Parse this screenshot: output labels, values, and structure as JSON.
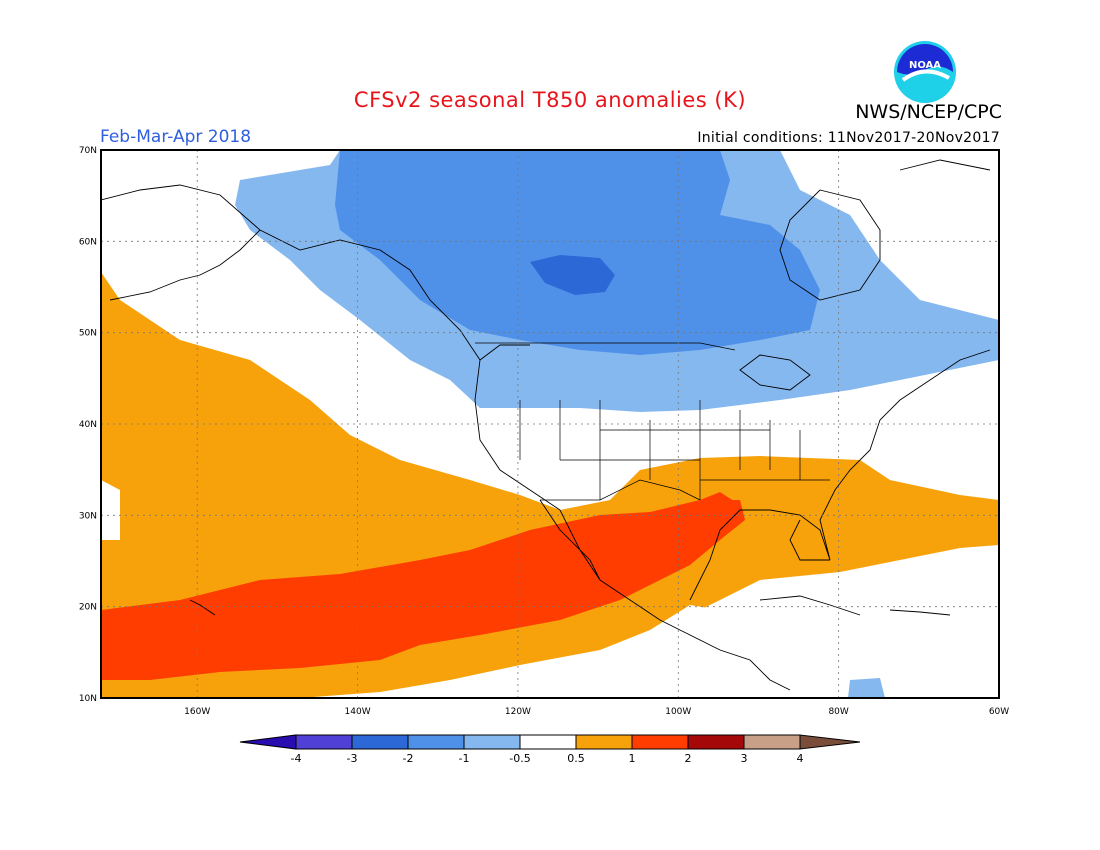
{
  "title": "CFSv2 seasonal T850 anomalies (K)",
  "organization": "NWS/NCEP/CPC",
  "logo_text": "NOAA",
  "period": "Feb-Mar-Apr 2018",
  "initial_conditions": "Initial conditions: 11Nov2017-20Nov2017",
  "map": {
    "lat_labels": [
      "10N",
      "20N",
      "30N",
      "40N",
      "50N",
      "60N",
      "70N"
    ],
    "lon_labels": [
      "160W",
      "140W",
      "120W",
      "100W",
      "80W",
      "60W"
    ],
    "lat_range": [
      10,
      70
    ],
    "lon_range": [
      -172,
      -60
    ]
  },
  "colorbar": {
    "ticks": [
      "-4",
      "-3",
      "-2",
      "-1",
      "-0.5",
      "0.5",
      "1",
      "2",
      "3",
      "4"
    ],
    "colors": [
      "#2a0db0",
      "#5140d6",
      "#2c69d6",
      "#4f90e8",
      "#86b8f0",
      "#ffffff",
      "#f7a20b",
      "#ff3d00",
      "#a50808",
      "#c8a087",
      "#7a4c3a"
    ]
  },
  "colors": {
    "anomaly_m3": "#2c69d6",
    "anomaly_m2": "#4f90e8",
    "anomaly_m1": "#86b8f0",
    "anomaly_p1": "#f7a20b",
    "anomaly_p2": "#ff3d00",
    "title_red": "#e8141c",
    "period_blue": "#2f5fe0"
  }
}
